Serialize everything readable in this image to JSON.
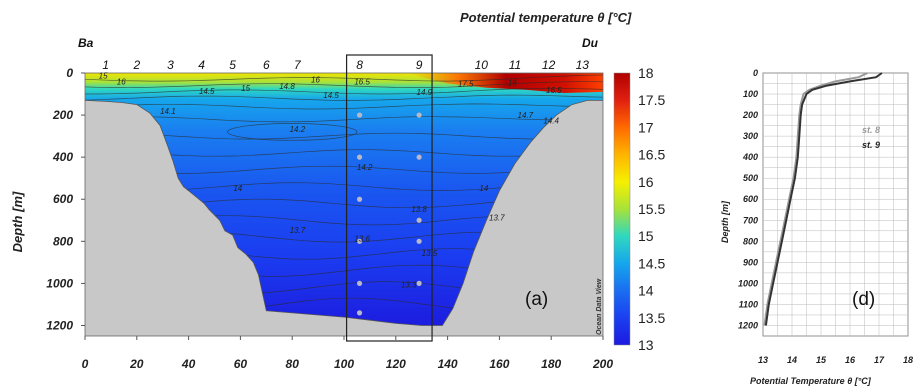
{
  "chart_data": [
    {
      "type": "heatmap",
      "panel_label": "(a)",
      "title": "Potential temperature θ [°C]",
      "ylabel": "Depth [m]",
      "xlabel": "",
      "xlim": [
        0,
        200
      ],
      "ylim": [
        1250,
        0
      ],
      "x_ticks": [
        "0",
        "20",
        "40",
        "60",
        "80",
        "100",
        "120",
        "140",
        "160",
        "180",
        "200"
      ],
      "y_ticks": [
        "0",
        "200",
        "400",
        "600",
        "800",
        "1000",
        "1200"
      ],
      "endpoints": {
        "left": "Ba",
        "right": "Du"
      },
      "stations": [
        {
          "label": "1",
          "x": 8
        },
        {
          "label": "2",
          "x": 20
        },
        {
          "label": "3",
          "x": 33
        },
        {
          "label": "4",
          "x": 45
        },
        {
          "label": "5",
          "x": 57
        },
        {
          "label": "6",
          "x": 70
        },
        {
          "label": "7",
          "x": 82
        },
        {
          "label": "8",
          "x": 106
        },
        {
          "label": "9",
          "x": 129
        },
        {
          "label": "10",
          "x": 153
        },
        {
          "label": "11",
          "x": 166
        },
        {
          "label": "12",
          "x": 179
        },
        {
          "label": "13",
          "x": 192
        }
      ],
      "colorbar": {
        "min": 13,
        "max": 18,
        "ticks": [
          "18",
          "17.5",
          "17",
          "16.5",
          "16",
          "15.5",
          "15",
          "14.5",
          "14",
          "13.5",
          "13"
        ],
        "colors": [
          "#b00000",
          "#e02010",
          "#ff6a00",
          "#ffb400",
          "#f5f000",
          "#a8e23a",
          "#2fd8c0",
          "#16a6ec",
          "#1a6ef0",
          "#1b3ff0",
          "#1c1ae0"
        ]
      },
      "contour_labels": [
        {
          "text": "15",
          "x": 7,
          "y": 25
        },
        {
          "text": "16",
          "x": 14,
          "y": 55
        },
        {
          "text": "14.5",
          "x": 47,
          "y": 100
        },
        {
          "text": "15",
          "x": 62,
          "y": 85
        },
        {
          "text": "14.8",
          "x": 78,
          "y": 75
        },
        {
          "text": "16",
          "x": 89,
          "y": 45
        },
        {
          "text": "16.5",
          "x": 107,
          "y": 55
        },
        {
          "text": "14.5",
          "x": 95,
          "y": 120
        },
        {
          "text": "14.9",
          "x": 131,
          "y": 105
        },
        {
          "text": "17.5",
          "x": 147,
          "y": 65
        },
        {
          "text": "16",
          "x": 165,
          "y": 60
        },
        {
          "text": "16.5",
          "x": 181,
          "y": 95
        },
        {
          "text": "14.1",
          "x": 32,
          "y": 195
        },
        {
          "text": "14.2",
          "x": 82,
          "y": 280
        },
        {
          "text": "14.7",
          "x": 170,
          "y": 215
        },
        {
          "text": "14.4",
          "x": 180,
          "y": 240
        },
        {
          "text": "14.2",
          "x": 108,
          "y": 460
        },
        {
          "text": "14",
          "x": 59,
          "y": 560
        },
        {
          "text": "14",
          "x": 154,
          "y": 560
        },
        {
          "text": "13.8",
          "x": 129,
          "y": 660
        },
        {
          "text": "13.7",
          "x": 159,
          "y": 700
        },
        {
          "text": "13.7",
          "x": 82,
          "y": 760
        },
        {
          "text": "13.6",
          "x": 107,
          "y": 800
        },
        {
          "text": "13.5",
          "x": 133,
          "y": 870
        },
        {
          "text": "13.3",
          "x": 125,
          "y": 1020
        }
      ],
      "watermark": "Ocean Data View"
    },
    {
      "type": "line",
      "panel_label": "(d)",
      "xlabel": "Potential Temperature θ [°C]",
      "ylabel": "Depth [m]",
      "xlim": [
        13,
        18
      ],
      "ylim": [
        1250,
        0
      ],
      "x_ticks": [
        "13",
        "14",
        "15",
        "16",
        "17",
        "18"
      ],
      "y_ticks": [
        "0",
        "100",
        "200",
        "300",
        "400",
        "500",
        "600",
        "700",
        "800",
        "900",
        "1000",
        "1100",
        "1200"
      ],
      "series": [
        {
          "name": "st. 8",
          "color": "#999999",
          "depth": [
            0,
            20,
            40,
            60,
            80,
            100,
            150,
            200,
            300,
            400,
            500,
            600,
            700,
            800,
            900,
            1000,
            1100,
            1200
          ],
          "temp": [
            16.6,
            16.3,
            15.5,
            15.0,
            14.6,
            14.4,
            14.3,
            14.25,
            14.2,
            14.15,
            14.05,
            13.9,
            13.75,
            13.6,
            13.45,
            13.3,
            13.15,
            13.05
          ]
        },
        {
          "name": "st. 9",
          "color": "#333333",
          "depth": [
            0,
            20,
            40,
            60,
            80,
            100,
            150,
            200,
            300,
            400,
            500,
            600,
            700,
            800,
            900,
            1000,
            1100,
            1200
          ],
          "temp": [
            17.1,
            16.9,
            16.0,
            15.2,
            14.7,
            14.5,
            14.35,
            14.3,
            14.25,
            14.2,
            14.1,
            13.95,
            13.8,
            13.65,
            13.5,
            13.35,
            13.2,
            13.1
          ]
        }
      ]
    }
  ]
}
